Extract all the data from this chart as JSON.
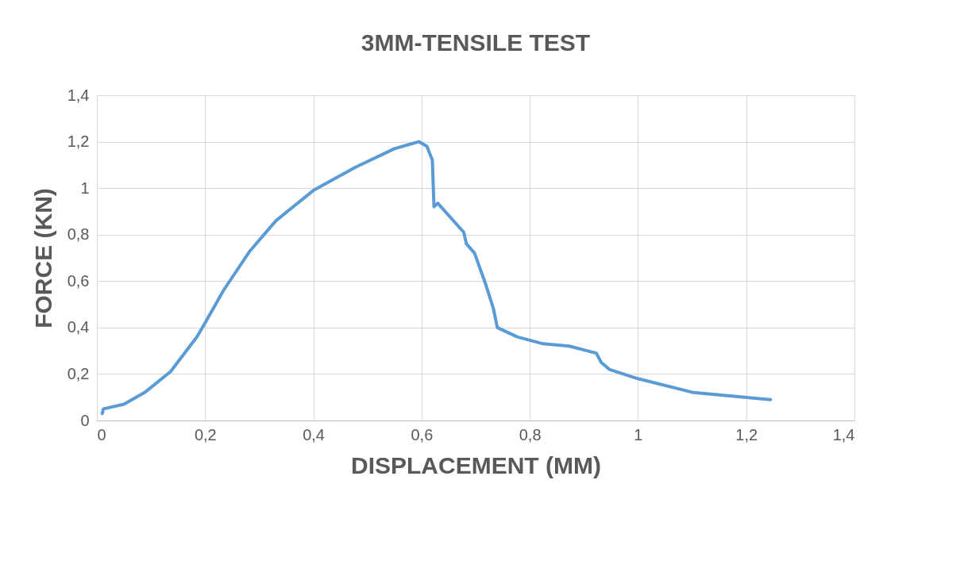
{
  "chart_data": {
    "type": "line",
    "title": "3MM-TENSILE  TEST",
    "xlabel": "DISPLACEMENT (MM)",
    "ylabel": "FORCE (KN)",
    "x": [
      0.01,
      0.012,
      0.05,
      0.088,
      0.136,
      0.185,
      0.2,
      0.234,
      0.283,
      0.331,
      0.4,
      0.478,
      0.55,
      0.595,
      0.61,
      0.62,
      0.623,
      0.63,
      0.678,
      0.683,
      0.698,
      0.718,
      0.733,
      0.74,
      0.777,
      0.825,
      0.873,
      0.923,
      0.932,
      0.947,
      1.0,
      1.103,
      1.245
    ],
    "series": [
      {
        "color": "#5b9bd5",
        "values": [
          0.03,
          0.05,
          0.07,
          0.12,
          0.21,
          0.36,
          0.42,
          0.56,
          0.73,
          0.86,
          0.99,
          1.09,
          1.17,
          1.2,
          1.18,
          1.12,
          0.92,
          0.935,
          0.81,
          0.76,
          0.72,
          0.59,
          0.48,
          0.4,
          0.36,
          0.33,
          0.32,
          0.29,
          0.25,
          0.22,
          0.18,
          0.12,
          0.09
        ]
      }
    ],
    "xlim": [
      0,
      1.4
    ],
    "xticks": [
      {
        "value": 0,
        "label": "0"
      },
      {
        "value": 0.2,
        "label": "0,2"
      },
      {
        "value": 0.4,
        "label": "0,4"
      },
      {
        "value": 0.6,
        "label": "0,6"
      },
      {
        "value": 0.8,
        "label": "0,8"
      },
      {
        "value": 1,
        "label": "1"
      },
      {
        "value": 1.2,
        "label": "1,2"
      },
      {
        "value": 1.4,
        "label": "1,4"
      }
    ],
    "ylim": [
      0,
      1.4
    ],
    "yticks": [
      {
        "value": 0,
        "label": "0"
      },
      {
        "value": 0.2,
        "label": "0,2"
      },
      {
        "value": 0.4,
        "label": "0,4"
      },
      {
        "value": 0.6,
        "label": "0,6"
      },
      {
        "value": 0.8,
        "label": "0,8"
      },
      {
        "value": 1,
        "label": "1"
      },
      {
        "value": 1.2,
        "label": "1,2"
      },
      {
        "value": 1.4,
        "label": "1,4"
      }
    ],
    "grid": true,
    "marker": "none",
    "line_style": "solid"
  }
}
